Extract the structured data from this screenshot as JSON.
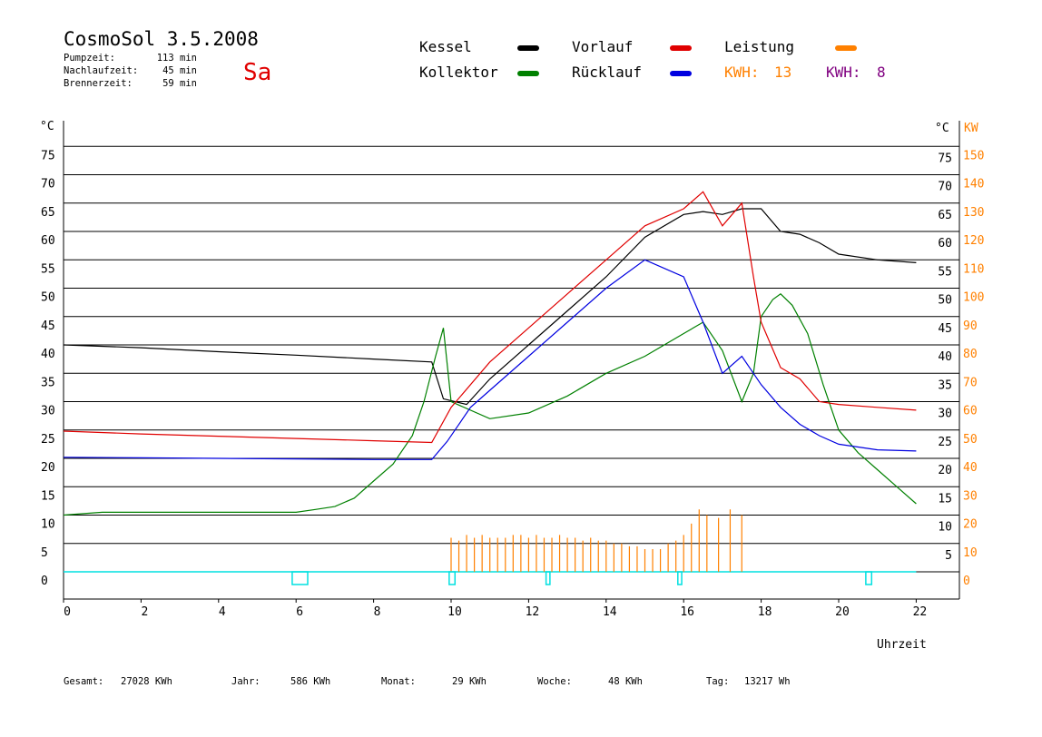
{
  "header": {
    "title": "CosmoSol 3.5.2008",
    "day": "Sa",
    "stats": [
      {
        "label": "Pumpzeit:",
        "value": "113 min"
      },
      {
        "label": "Nachlaufzeit:",
        "value": "45 min"
      },
      {
        "label": "Brennerzeit:",
        "value": "59 min"
      }
    ]
  },
  "legend": {
    "items": [
      {
        "label": "Kessel",
        "color": "#000000"
      },
      {
        "label": "Kollektor",
        "color": "#008000"
      },
      {
        "label": "Vorlauf",
        "color": "#e00000"
      },
      {
        "label": "Rücklauf",
        "color": "#0000e0"
      },
      {
        "label": "Leistung",
        "color": "#ff8000"
      }
    ],
    "kwh": [
      {
        "label": "KWH:",
        "value": "13",
        "color": "#ff8000"
      },
      {
        "label": "KWH:",
        "value": "8",
        "color": "#800080"
      }
    ]
  },
  "footer": [
    {
      "label": "Gesamt:",
      "value": "27028 KWh"
    },
    {
      "label": "Jahr:",
      "value": "586 KWh"
    },
    {
      "label": "Monat:",
      "value": "29 KWh"
    },
    {
      "label": "Woche:",
      "value": "48 KWh"
    },
    {
      "label": "Tag:",
      "value": "13217 Wh"
    }
  ],
  "chart_data": {
    "type": "line",
    "xlabel": "Uhrzeit",
    "ylabel_left": "°C",
    "ylabel_right_temp": "°C",
    "ylabel_right_power": "KW",
    "xlim": [
      0,
      23
    ],
    "ylim": [
      -5,
      80
    ],
    "x_ticks": [
      0,
      2,
      4,
      6,
      8,
      10,
      12,
      14,
      16,
      18,
      20,
      22
    ],
    "y_ticks_left": [
      0,
      5,
      10,
      15,
      20,
      25,
      30,
      35,
      40,
      45,
      50,
      55,
      60,
      65,
      70,
      75
    ],
    "y_ticks_right_temp": [
      5,
      10,
      15,
      20,
      25,
      30,
      35,
      40,
      45,
      50,
      55,
      60,
      65,
      70,
      75
    ],
    "y_ticks_right_power": [
      0,
      10,
      20,
      30,
      40,
      50,
      60,
      70,
      80,
      90,
      100,
      110,
      120,
      130,
      140,
      150
    ],
    "grid": true,
    "series": [
      {
        "name": "Kessel",
        "color": "#000000",
        "x": [
          0,
          2,
          4,
          6,
          8,
          9.5,
          9.8,
          10.4,
          11,
          12,
          13,
          14,
          15,
          16,
          16.5,
          17,
          17.5,
          18,
          18.5,
          19,
          19.5,
          20,
          21,
          22
        ],
        "y": [
          40,
          39.5,
          38.8,
          38.2,
          37.5,
          37,
          30.5,
          29.5,
          34,
          40,
          46,
          52,
          59,
          63,
          63.5,
          63,
          64,
          64,
          60,
          59.5,
          58,
          56,
          55,
          54.5
        ]
      },
      {
        "name": "Kollektor",
        "color": "#008000",
        "x": [
          0,
          1,
          2,
          3,
          4,
          5,
          6,
          6.5,
          7,
          7.5,
          8,
          8.5,
          9,
          9.3,
          9.6,
          9.8,
          10,
          11,
          12,
          13,
          14,
          15,
          16,
          16.5,
          17,
          17.5,
          17.8,
          18,
          18.3,
          18.5,
          18.8,
          19.2,
          19.6,
          20,
          20.5,
          21,
          21.5,
          22
        ],
        "y": [
          10,
          10.5,
          10.5,
          10.5,
          10.5,
          10.5,
          10.5,
          11,
          11.5,
          13,
          16,
          19,
          24,
          30,
          38,
          43,
          30,
          27,
          28,
          31,
          35,
          38,
          42,
          44,
          39,
          30,
          35,
          45,
          48,
          49,
          47,
          42,
          33,
          25,
          21,
          18,
          15,
          12
        ]
      },
      {
        "name": "Vorlauf",
        "color": "#e00000",
        "x": [
          0,
          2,
          4,
          6,
          8,
          9.5,
          10,
          11,
          12,
          13,
          14,
          15,
          16,
          16.5,
          17,
          17.5,
          17.8,
          18,
          18.5,
          19,
          19.5,
          20,
          21,
          22
        ],
        "y": [
          24.8,
          24.3,
          23.9,
          23.5,
          23.1,
          22.8,
          29,
          37,
          43,
          49,
          55,
          61,
          64,
          67,
          61,
          65,
          52,
          44,
          36,
          34,
          30,
          29.5,
          29,
          28.5
        ]
      },
      {
        "name": "Rücklauf",
        "color": "#0000e0",
        "x": [
          0,
          2,
          4,
          6,
          8,
          9.5,
          9.9,
          10.5,
          11,
          12,
          13,
          14,
          15,
          16,
          16.5,
          17,
          17.5,
          18,
          18.5,
          19,
          19.5,
          20,
          21,
          22
        ],
        "y": [
          20.2,
          20.1,
          20,
          19.9,
          19.8,
          19.8,
          23,
          29,
          32,
          38,
          44,
          50,
          55,
          52,
          44,
          35,
          38,
          33,
          29,
          26,
          24,
          22.5,
          21.5,
          21.3
        ]
      }
    ],
    "leistung_bursts_kw": {
      "x": [
        10,
        10.2,
        10.4,
        10.6,
        10.8,
        11,
        11.2,
        11.4,
        11.6,
        11.8,
        12,
        12.2,
        12.4,
        12.6,
        12.8,
        13,
        13.2,
        13.4,
        13.6,
        13.8,
        14,
        14.2,
        14.4,
        14.6,
        14.8,
        15,
        15.2,
        15.4,
        15.6,
        15.8,
        16,
        16.2,
        16.4,
        16.6,
        16.9,
        17.2,
        17.5
      ],
      "y": [
        12,
        11,
        13,
        12,
        13,
        12,
        12,
        12,
        13,
        13,
        12,
        13,
        12,
        12,
        13,
        12,
        12,
        11,
        12,
        11,
        11,
        10,
        10,
        9,
        9,
        8,
        8,
        8,
        10,
        11,
        13,
        17,
        22,
        20,
        19,
        22,
        20
      ]
    },
    "pump_markers": [
      {
        "x": [
          5.9,
          6.3
        ]
      },
      {
        "x": [
          9.95,
          10.1
        ]
      },
      {
        "x": [
          12.45,
          12.55
        ]
      },
      {
        "x": [
          15.85,
          15.95
        ]
      },
      {
        "x": [
          20.7,
          20.85
        ]
      }
    ]
  }
}
